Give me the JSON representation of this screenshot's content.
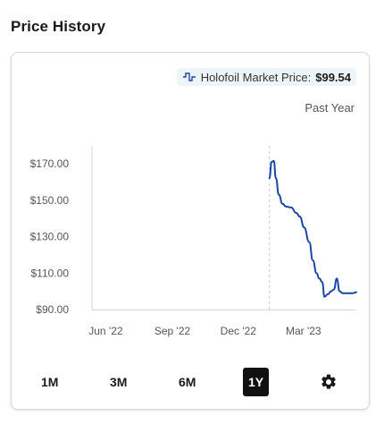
{
  "header": {
    "title": "Price History"
  },
  "legend": {
    "label": "Holofoil Market Price:",
    "value": "$99.54",
    "icon": "line-step-icon",
    "color": "#1a46a5"
  },
  "period_label": "Past Year",
  "ranges": [
    {
      "label": "1M",
      "active": false
    },
    {
      "label": "3M",
      "active": false
    },
    {
      "label": "6M",
      "active": false
    },
    {
      "label": "1Y",
      "active": true
    }
  ],
  "settings_icon": "gear-icon",
  "chart_data": {
    "type": "line",
    "series": [
      {
        "name": "Holofoil Market Price",
        "color": "#1a46a5",
        "x": [
          "2023-01-13",
          "2023-01-16",
          "2023-01-19",
          "2023-01-22",
          "2023-01-26",
          "2023-01-31",
          "2023-02-05",
          "2023-02-12",
          "2023-02-19",
          "2023-02-24",
          "2023-03-02",
          "2023-03-09",
          "2023-03-14",
          "2023-03-19",
          "2023-03-23",
          "2023-03-27",
          "2023-03-30",
          "2023-04-04",
          "2023-04-08",
          "2023-04-12",
          "2023-04-16",
          "2023-04-20",
          "2023-04-24",
          "2023-04-28",
          "2023-05-03",
          "2023-05-08",
          "2023-05-13"
        ],
        "values": [
          162,
          171,
          171.5,
          162,
          153,
          148,
          146.5,
          146,
          143,
          141,
          135,
          127,
          117,
          110,
          107,
          105,
          97,
          98.5,
          100,
          101,
          107,
          100,
          99,
          99,
          99,
          99,
          99.54
        ]
      }
    ],
    "x_ticks": [
      "Jun '22",
      "Sep '22",
      "Dec '22",
      "Mar '23"
    ],
    "x_tick_dates": [
      "2022-06-01",
      "2022-09-01",
      "2022-12-01",
      "2023-03-01"
    ],
    "x_range": [
      "2022-05-13",
      "2023-05-13"
    ],
    "y_ticks": [
      "$170.00",
      "$150.00",
      "$130.00",
      "$110.00",
      "$90.00"
    ],
    "y_tick_values": [
      170,
      150,
      130,
      110,
      90
    ],
    "ylim": [
      90,
      170
    ],
    "grid": false,
    "marker_date": "2023-01-13"
  }
}
